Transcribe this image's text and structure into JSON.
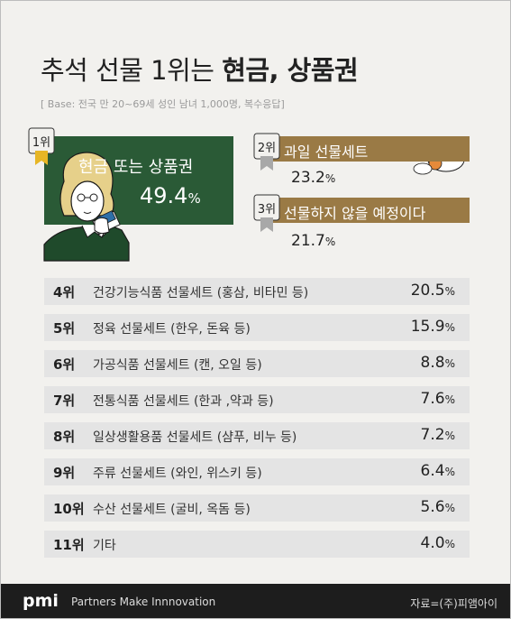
{
  "header": {
    "title_regular": "추석 선물 1위는 ",
    "title_bold": "현금, 상품권",
    "base_note": "[ Base: 전국 만 20~69세 성인 남녀 1,000명, 복수응답]"
  },
  "top3": [
    {
      "rank": "1위",
      "label": "현금 또는 상품권",
      "value": "49.4",
      "unit": "%"
    },
    {
      "rank": "2위",
      "label": "과일 선물세트",
      "value": "23.2",
      "unit": "%"
    },
    {
      "rank": "3위",
      "label": "선물하지 않을 예정이다",
      "value": "21.7",
      "unit": "%"
    }
  ],
  "rows": [
    {
      "rank": "4위",
      "label": "건강기능식품 선물세트 (홍삼, 비타민 등)",
      "value": "20.5",
      "unit": "%"
    },
    {
      "rank": "5위",
      "label": "정육 선물세트 (한우, 돈육 등)",
      "value": "15.9",
      "unit": "%"
    },
    {
      "rank": "6위",
      "label": "가공식품 선물세트 (캔, 오일 등)",
      "value": "8.8",
      "unit": "%"
    },
    {
      "rank": "7위",
      "label": "전통식품 선물세트 (한과 ,약과 등)",
      "value": "7.6",
      "unit": "%"
    },
    {
      "rank": "8위",
      "label": "일상생활용품 선물세트 (샴푸, 비누 등)",
      "value": "7.2",
      "unit": "%"
    },
    {
      "rank": "9위",
      "label": "주류 선물세트 (와인, 위스키 등)",
      "value": "6.4",
      "unit": "%"
    },
    {
      "rank": "10위",
      "label": "수산 선물세트 (굴비, 옥돔 등)",
      "value": "5.6",
      "unit": "%"
    },
    {
      "rank": "11위",
      "label": "기타",
      "value": "4.0",
      "unit": "%"
    }
  ],
  "footer": {
    "logo": "pmi",
    "tagline": "Partners Make Innnovation",
    "source": "자료=(주)피앰아이"
  },
  "colors": {
    "rank1": "#2a5a36",
    "rank23": "#9a7a45",
    "row_bg": "#e4e4e4",
    "gold_badge": "#e7b625",
    "silver_badge": "#a8a8a8"
  },
  "chart_data": {
    "type": "table",
    "title": "추석 선물 1위는 현금, 상품권",
    "categories": [
      "현금 또는 상품권",
      "과일 선물세트",
      "선물하지 않을 예정이다",
      "건강기능식품 선물세트 (홍삼, 비타민 등)",
      "정육 선물세트 (한우, 돈육 등)",
      "가공식품 선물세트 (캔, 오일 등)",
      "전통식품 선물세트 (한과 ,약과 등)",
      "일상생활용품 선물세트 (샴푸, 비누 등)",
      "주류 선물세트 (와인, 위스키 등)",
      "수산 선물세트 (굴비, 옥돔 등)",
      "기타"
    ],
    "values": [
      49.4,
      23.2,
      21.7,
      20.5,
      15.9,
      8.8,
      7.6,
      7.2,
      6.4,
      5.6,
      4.0
    ]
  }
}
